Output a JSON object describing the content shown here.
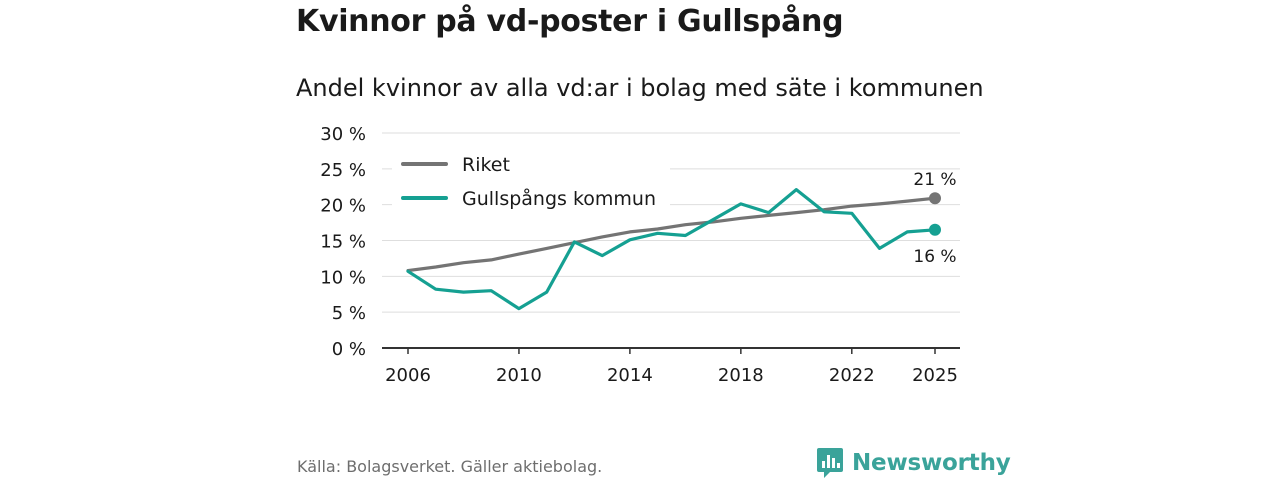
{
  "header": {
    "title": "Kvinnor på vd-poster i Gullspång",
    "subtitle": "Andel kvinnor av alla vd:ar i bolag med säte i kommunen"
  },
  "footer": {
    "source": "Källa: Bolagsverket. Gäller aktiebolag.",
    "brand": "Newsworthy"
  },
  "colors": {
    "riket": "#747474",
    "gullspang": "#15a092",
    "brand": "#3aa39a"
  },
  "chart_data": {
    "type": "line",
    "title": "Kvinnor på vd-poster i Gullspång",
    "subtitle": "Andel kvinnor av alla vd:ar i bolag med säte i kommunen",
    "xlabel": "",
    "ylabel": "",
    "x": [
      2006,
      2007,
      2008,
      2009,
      2010,
      2011,
      2012,
      2013,
      2014,
      2015,
      2016,
      2017,
      2018,
      2019,
      2020,
      2021,
      2022,
      2023,
      2024,
      2025
    ],
    "xticks": [
      2006,
      2010,
      2014,
      2018,
      2022,
      2025
    ],
    "xtick_labels": [
      "2006",
      "2010",
      "2014",
      "2018",
      "2022",
      "2025"
    ],
    "ylim": [
      0,
      30
    ],
    "yticks": [
      0,
      5,
      10,
      15,
      20,
      25,
      30
    ],
    "ytick_labels": [
      "0 %",
      "5 %",
      "10 %",
      "15 %",
      "20 %",
      "25 %",
      "30 %"
    ],
    "grid": true,
    "legend_position": "top-left",
    "series": [
      {
        "name": "Riket",
        "color": "#747474",
        "values": [
          10.8,
          11.3,
          11.9,
          12.3,
          13.1,
          13.9,
          14.7,
          15.5,
          16.2,
          16.6,
          17.2,
          17.6,
          18.1,
          18.5,
          18.9,
          19.3,
          19.8,
          20.1,
          20.5,
          20.9
        ],
        "end_label": "21 %"
      },
      {
        "name": "Gullspångs kommun",
        "color": "#15a092",
        "values": [
          10.7,
          8.2,
          7.8,
          8.0,
          5.5,
          7.8,
          14.8,
          12.9,
          15.1,
          16.0,
          15.7,
          17.9,
          20.1,
          18.9,
          22.1,
          19.0,
          18.8,
          13.9,
          16.2,
          16.5
        ],
        "end_label": "16 %"
      }
    ]
  }
}
